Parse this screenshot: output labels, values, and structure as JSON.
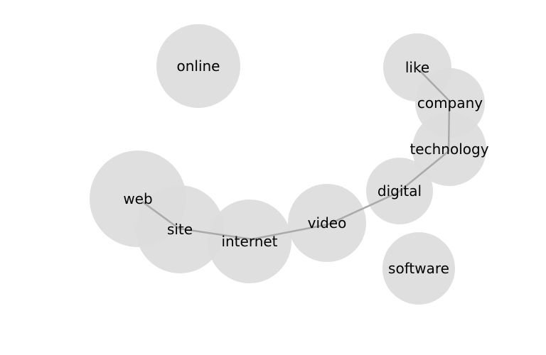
{
  "nodes": [
    {
      "id": "online",
      "label": "online"
    },
    {
      "id": "like",
      "label": "like"
    },
    {
      "id": "company",
      "label": "company"
    },
    {
      "id": "technology",
      "label": "technology"
    },
    {
      "id": "web",
      "label": "web"
    },
    {
      "id": "site",
      "label": "site"
    },
    {
      "id": "internet",
      "label": "internet"
    },
    {
      "id": "video",
      "label": "video"
    },
    {
      "id": "digital",
      "label": "digital"
    },
    {
      "id": "software",
      "label": "software"
    }
  ],
  "edges": [
    {
      "source": "like",
      "target": "company"
    },
    {
      "source": "company",
      "target": "technology"
    },
    {
      "source": "technology",
      "target": "digital"
    },
    {
      "source": "digital",
      "target": "video"
    },
    {
      "source": "video",
      "target": "internet"
    },
    {
      "source": "internet",
      "target": "site"
    },
    {
      "source": "site",
      "target": "web"
    }
  ],
  "colors": {
    "node_fill": "#dcdcdc",
    "edge": "#a9a9a9",
    "label": "#000000",
    "background": "#ffffff"
  }
}
